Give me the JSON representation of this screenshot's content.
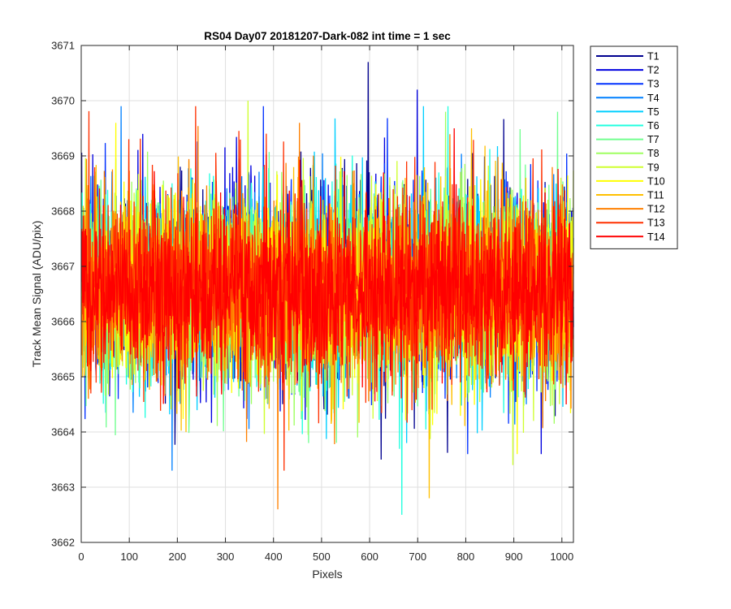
{
  "chart_data": {
    "type": "line",
    "title": "RS04 Day07 20181207-Dark-082 int time = 1 sec",
    "xlabel": "Pixels",
    "ylabel": "Track Mean Signal (ADU/pix)",
    "xlim": [
      0,
      1024
    ],
    "ylim": [
      3662,
      3671
    ],
    "xticks": [
      0,
      100,
      200,
      300,
      400,
      500,
      600,
      700,
      800,
      900,
      1000
    ],
    "yticks": [
      3662,
      3663,
      3664,
      3665,
      3666,
      3667,
      3668,
      3669,
      3670,
      3671
    ],
    "grid": true,
    "legend_position": "outside-right",
    "x_start": 1,
    "x_end": 1024,
    "series": [
      {
        "name": "T1",
        "color": "#00008f",
        "mean": 3666.7,
        "noise_std": 0.85,
        "min": 3663.5,
        "max": 3670.7
      },
      {
        "name": "T2",
        "color": "#0000df",
        "mean": 3666.7,
        "noise_std": 0.85,
        "min": 3663.6,
        "max": 3670.2
      },
      {
        "name": "T3",
        "color": "#0030ff",
        "mean": 3666.6,
        "noise_std": 0.85,
        "min": 3663.6,
        "max": 3669.9
      },
      {
        "name": "T4",
        "color": "#0080ff",
        "mean": 3666.6,
        "noise_std": 0.85,
        "min": 3663.3,
        "max": 3669.9
      },
      {
        "name": "T5",
        "color": "#00cfff",
        "mean": 3666.6,
        "noise_std": 0.85,
        "min": 3663.8,
        "max": 3669.9
      },
      {
        "name": "T6",
        "color": "#20ffdf",
        "mean": 3666.6,
        "noise_std": 0.85,
        "min": 3662.5,
        "max": 3669.9
      },
      {
        "name": "T7",
        "color": "#70ff8f",
        "mean": 3666.6,
        "noise_std": 0.85,
        "min": 3663.8,
        "max": 3669.8
      },
      {
        "name": "T8",
        "color": "#9fff60",
        "mean": 3666.6,
        "noise_std": 0.85,
        "min": 3663.9,
        "max": 3669.8
      },
      {
        "name": "T9",
        "color": "#cfff30",
        "mean": 3666.6,
        "noise_std": 0.85,
        "min": 3663.4,
        "max": 3670.0
      },
      {
        "name": "T10",
        "color": "#ffff00",
        "mean": 3666.6,
        "noise_std": 0.85,
        "min": 3663.6,
        "max": 3669.6
      },
      {
        "name": "T11",
        "color": "#ffbf00",
        "mean": 3666.6,
        "noise_std": 0.85,
        "min": 3662.8,
        "max": 3669.5
      },
      {
        "name": "T12",
        "color": "#ff8000",
        "mean": 3666.6,
        "noise_std": 0.85,
        "min": 3662.6,
        "max": 3669.6
      },
      {
        "name": "T13",
        "color": "#ff3000",
        "mean": 3666.6,
        "noise_std": 0.85,
        "min": 3663.3,
        "max": 3669.9
      },
      {
        "name": "T14",
        "color": "#ff0000",
        "mean": 3666.6,
        "noise_std": 0.75,
        "min": 3664.5,
        "max": 3669.5
      }
    ]
  }
}
